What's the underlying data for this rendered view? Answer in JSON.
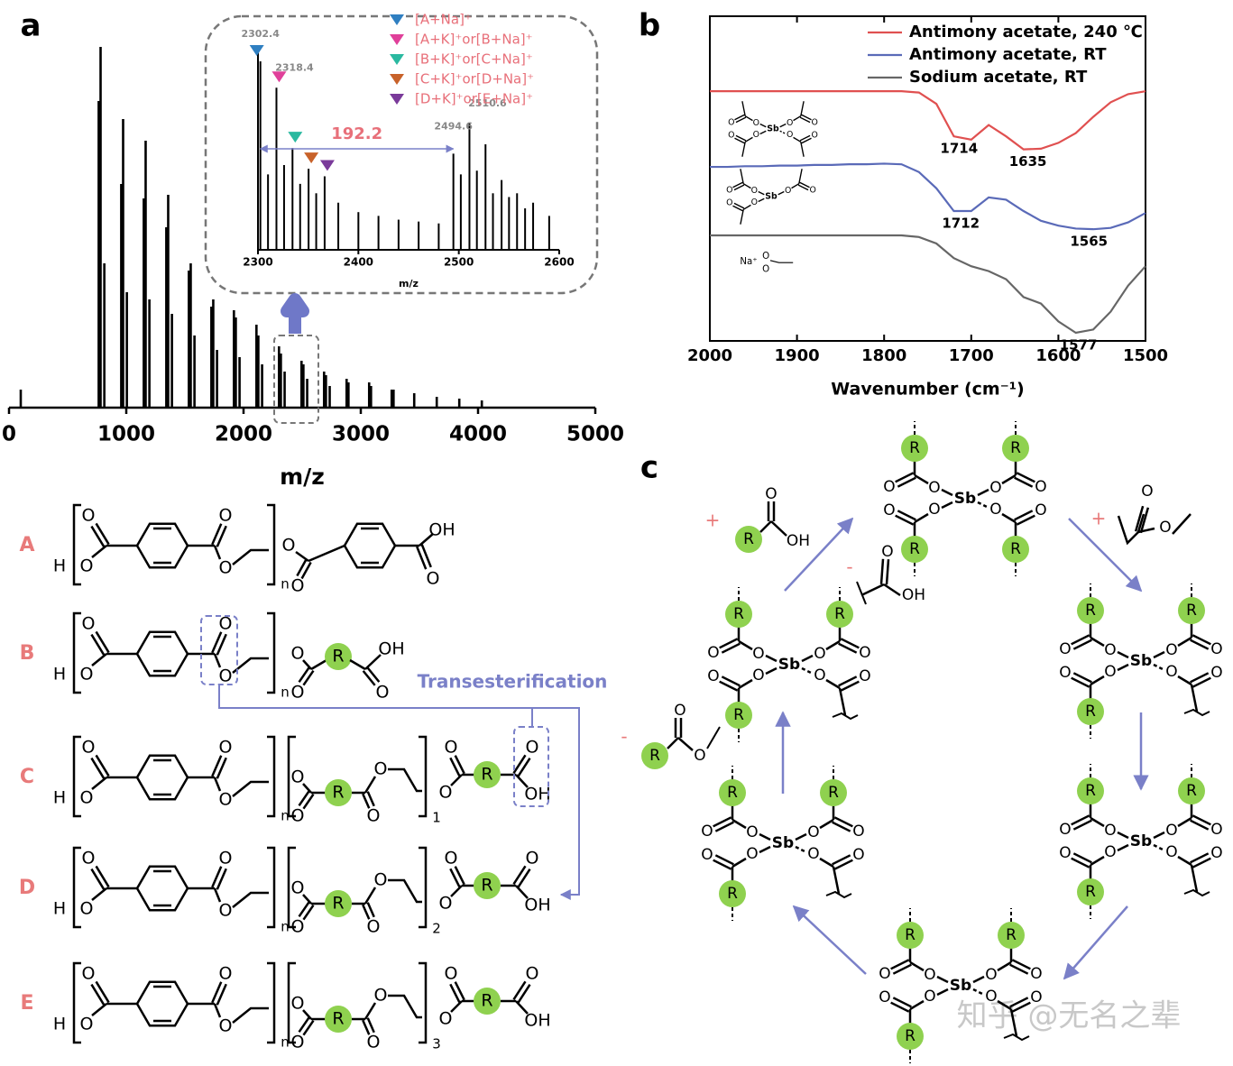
{
  "panels": {
    "a": "a",
    "b": "b",
    "c": "c"
  },
  "chart_data": [
    {
      "type": "stem",
      "xlabel": "m/z",
      "xlim": [
        0,
        5000
      ],
      "ylim": [
        0,
        100
      ],
      "xticks": [
        0,
        1000,
        2000,
        3000,
        4000,
        5000
      ],
      "color": "#000000",
      "x": [
        100,
        764.8,
        780.8,
        812.8,
        957.0,
        973.0,
        1005.0,
        1149.2,
        1165.2,
        1197.2,
        1341.4,
        1357.4,
        1389.4,
        1533.6,
        1549.6,
        1581.6,
        1725.8,
        1741.8,
        1773.8,
        1918.0,
        1934.0,
        1966.0,
        2110.2,
        2126.2,
        2158.2,
        2302.4,
        2318.4,
        2350.4,
        2494.6,
        2510.6,
        2542.6,
        2686.8,
        2702.8,
        2734.8,
        2879.0,
        2895.0,
        3071.2,
        3087.2,
        3263.4,
        3279.4,
        3455.6,
        3647.8,
        3840.0,
        4032.2
      ],
      "values": [
        5,
        85,
        100,
        40,
        62,
        80,
        32,
        58,
        74,
        30,
        50,
        59,
        26,
        38,
        40,
        20,
        28,
        30,
        16,
        27,
        25,
        14,
        23,
        20,
        12,
        17,
        15,
        10,
        13,
        12,
        8,
        10,
        9,
        6,
        8,
        7,
        7,
        6,
        5,
        5,
        4,
        3,
        2.5,
        2
      ]
    },
    {
      "type": "stem",
      "xlabel": "m/z",
      "xlim": [
        2300,
        2600
      ],
      "ylim": [
        0,
        100
      ],
      "xticks": [
        2300,
        2400,
        2500,
        2600
      ],
      "color": "#000000",
      "x": [
        2302.4,
        2310,
        2318.4,
        2326,
        2334.4,
        2342,
        2350.4,
        2358,
        2366.4,
        2380,
        2400,
        2420,
        2440,
        2460,
        2480,
        2494.6,
        2502,
        2510.6,
        2518,
        2526.6,
        2534,
        2542.6,
        2550,
        2558,
        2566,
        2574,
        2590
      ],
      "values": [
        100,
        40,
        86,
        45,
        54,
        35,
        43,
        30,
        39,
        25,
        20,
        18,
        16,
        15,
        14,
        51,
        40,
        67,
        42,
        56,
        30,
        37,
        28,
        30,
        22,
        25,
        18
      ],
      "peak_labels": [
        {
          "x": 2302.4,
          "label": "2302.4"
        },
        {
          "x": 2318.4,
          "label": "2318.4"
        },
        {
          "x": 2494.6,
          "label": "2494.6"
        },
        {
          "x": 2510.6,
          "label": "2510.6"
        }
      ],
      "markers": [
        {
          "x": 2302.4,
          "name": "[A+Na]⁺",
          "color": "#2f7fc1"
        },
        {
          "x": 2318.4,
          "name": "[A+K]⁺or[B+Na]⁺",
          "color": "#e0409a"
        },
        {
          "x": 2334.4,
          "name": "[B+K]⁺or[C+Na]⁺",
          "color": "#2ab9a0"
        },
        {
          "x": 2350.4,
          "name": "[C+K]⁺or[D+Na]⁺",
          "color": "#c8622a"
        },
        {
          "x": 2366.4,
          "name": "[D+K]⁺or[E+Na]⁺",
          "color": "#7a3a9a"
        }
      ],
      "spacing": {
        "from": 2302.4,
        "to": 2494.6,
        "label": "192.2"
      }
    },
    {
      "type": "line",
      "xlabel": "Wavenumber (cm⁻¹)",
      "xlim": [
        2000,
        1500
      ],
      "ylim": [
        0,
        100
      ],
      "xticks": [
        2000,
        1900,
        1800,
        1700,
        1600,
        1500
      ],
      "x": [
        2000,
        1980,
        1960,
        1940,
        1920,
        1900,
        1880,
        1860,
        1840,
        1820,
        1800,
        1780,
        1760,
        1740,
        1720,
        1700,
        1680,
        1660,
        1640,
        1620,
        1600,
        1580,
        1560,
        1540,
        1520,
        1500
      ],
      "series": [
        {
          "name": "Antimony acetate, 240 ℃",
          "color": "#e05050",
          "values": [
            76.9,
            76.9,
            76.9,
            76.9,
            76.9,
            76.9,
            76.9,
            76.9,
            76.9,
            76.9,
            76.9,
            76.9,
            76.5,
            73,
            63,
            62,
            66.5,
            63,
            59,
            59.2,
            61,
            64,
            69,
            73.5,
            76,
            76.9
          ]
        },
        {
          "name": "Antimony acetate, RT",
          "color": "#5a6ab8",
          "values": [
            53.6,
            53.6,
            53.8,
            53.8,
            54,
            54,
            54.2,
            54.2,
            54.4,
            54.4,
            54.6,
            54.4,
            52,
            47,
            40,
            40,
            44.2,
            43.5,
            40,
            37,
            35.5,
            34.6,
            34.4,
            34.8,
            36.5,
            39.4
          ]
        },
        {
          "name": "Sodium acetate, RT",
          "color": "#666666",
          "values": [
            32.5,
            32.5,
            32.5,
            32.5,
            32.5,
            32.5,
            32.5,
            32.5,
            32.5,
            32.5,
            32.5,
            32.5,
            32,
            30,
            25.5,
            23,
            21.5,
            19,
            13.5,
            11.5,
            6,
            2.5,
            3.5,
            9,
            17,
            23
          ]
        }
      ],
      "peak_labels": [
        {
          "x": 1714,
          "label": "1714",
          "series": 0
        },
        {
          "x": 1635,
          "label": "1635",
          "series": 0
        },
        {
          "x": 1712,
          "label": "1712",
          "series": 1
        },
        {
          "x": 1565,
          "label": "1565",
          "series": 1
        },
        {
          "x": 1577,
          "label": "1577",
          "series": 2
        }
      ],
      "legend": "upper right"
    }
  ],
  "structures": {
    "rows": [
      "A",
      "B",
      "C",
      "D",
      "E"
    ],
    "repeats": [
      "1",
      "2",
      "3"
    ],
    "n": "n",
    "reaction": "Transesterification",
    "atoms": {
      "oxygen": "O",
      "hydroxyl": "OH",
      "hydrogen": "H",
      "residue": "R",
      "antimony": "Sb",
      "sodium": "Na⁺",
      "plus": "+",
      "minus": "-"
    }
  },
  "watermark": "知乎 @无名之辈"
}
